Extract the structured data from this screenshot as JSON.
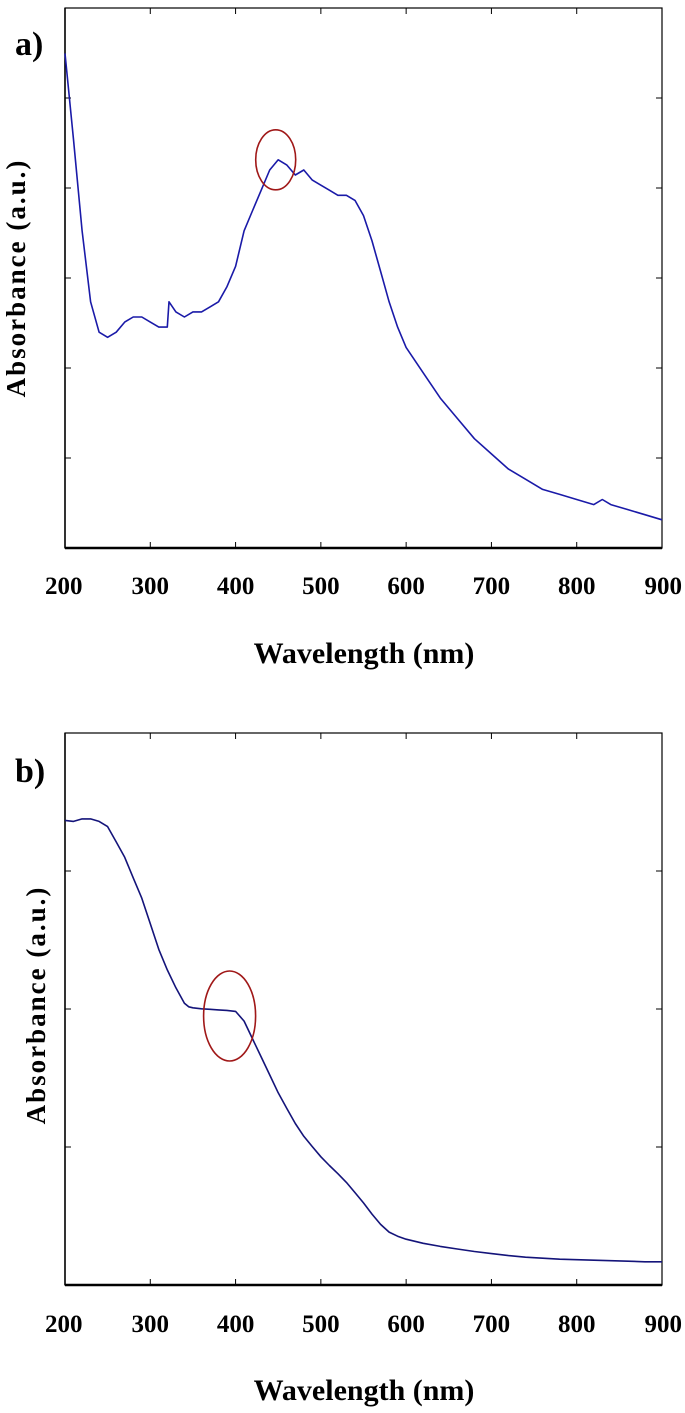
{
  "chart_data": [
    {
      "type": "line",
      "panel_label": "a)",
      "xlabel": "Wavelength (nm)",
      "ylabel": "Absorbance (a.u.)",
      "xlim": [
        200,
        900
      ],
      "ylim": [
        0,
        1
      ],
      "xticks": [
        "200",
        "300",
        "400",
        "500",
        "600",
        "700",
        "800",
        "900"
      ],
      "yticks_count": 5,
      "grid": false,
      "colors": {
        "line": "#1a1aa8",
        "highlight": "#a01818"
      },
      "highlight": {
        "x": 447,
        "y": 0.74
      },
      "series": [
        {
          "x": [
            200,
            210,
            220,
            230,
            240,
            250,
            260,
            270,
            280,
            290,
            300,
            310,
            320,
            322,
            330,
            340,
            350,
            360,
            370,
            380,
            390,
            400,
            410,
            420,
            430,
            440,
            450,
            460,
            470,
            480,
            490,
            500,
            510,
            520,
            530,
            540,
            550,
            560,
            570,
            580,
            590,
            600,
            620,
            640,
            660,
            680,
            700,
            720,
            740,
            760,
            780,
            800,
            820,
            830,
            840,
            860,
            880,
            900
          ],
          "y": [
            0.95,
            0.78,
            0.6,
            0.46,
            0.4,
            0.39,
            0.4,
            0.42,
            0.43,
            0.43,
            0.42,
            0.41,
            0.41,
            0.46,
            0.44,
            0.43,
            0.44,
            0.44,
            0.45,
            0.46,
            0.49,
            0.53,
            0.6,
            0.64,
            0.68,
            0.72,
            0.74,
            0.73,
            0.71,
            0.72,
            0.7,
            0.69,
            0.68,
            0.67,
            0.67,
            0.66,
            0.63,
            0.58,
            0.52,
            0.46,
            0.41,
            0.37,
            0.32,
            0.27,
            0.23,
            0.19,
            0.16,
            0.13,
            0.11,
            0.09,
            0.08,
            0.07,
            0.06,
            0.07,
            0.06,
            0.05,
            0.04,
            0.03
          ]
        }
      ]
    },
    {
      "type": "line",
      "panel_label": "b)",
      "xlabel": "Wavelength (nm)",
      "ylabel": "Absorbance (a.u.)",
      "xlim": [
        200,
        900
      ],
      "ylim": [
        0,
        1
      ],
      "xticks": [
        "200",
        "300",
        "400",
        "500",
        "600",
        "700",
        "800",
        "900"
      ],
      "yticks_count": 3,
      "grid": false,
      "colors": {
        "line": "#14147a",
        "highlight": "#a01818"
      },
      "highlight": {
        "x": 393,
        "y": 0.5
      },
      "series": [
        {
          "x": [
            200,
            210,
            220,
            230,
            240,
            250,
            260,
            270,
            280,
            290,
            300,
            310,
            320,
            330,
            340,
            345,
            350,
            360,
            370,
            380,
            390,
            400,
            410,
            420,
            430,
            440,
            450,
            460,
            470,
            480,
            490,
            500,
            510,
            520,
            530,
            540,
            550,
            560,
            570,
            580,
            590,
            600,
            620,
            640,
            660,
            680,
            700,
            720,
            740,
            760,
            780,
            800,
            820,
            840,
            860,
            880,
            900
          ],
          "y": [
            0.882,
            0.88,
            0.885,
            0.885,
            0.88,
            0.87,
            0.84,
            0.81,
            0.77,
            0.73,
            0.68,
            0.63,
            0.59,
            0.555,
            0.525,
            0.518,
            0.516,
            0.514,
            0.513,
            0.512,
            0.511,
            0.509,
            0.49,
            0.455,
            0.42,
            0.385,
            0.35,
            0.32,
            0.29,
            0.265,
            0.245,
            0.225,
            0.208,
            0.192,
            0.175,
            0.155,
            0.135,
            0.113,
            0.093,
            0.078,
            0.07,
            0.064,
            0.056,
            0.05,
            0.045,
            0.04,
            0.036,
            0.032,
            0.029,
            0.027,
            0.025,
            0.024,
            0.023,
            0.022,
            0.021,
            0.02,
            0.02
          ]
        }
      ]
    }
  ]
}
